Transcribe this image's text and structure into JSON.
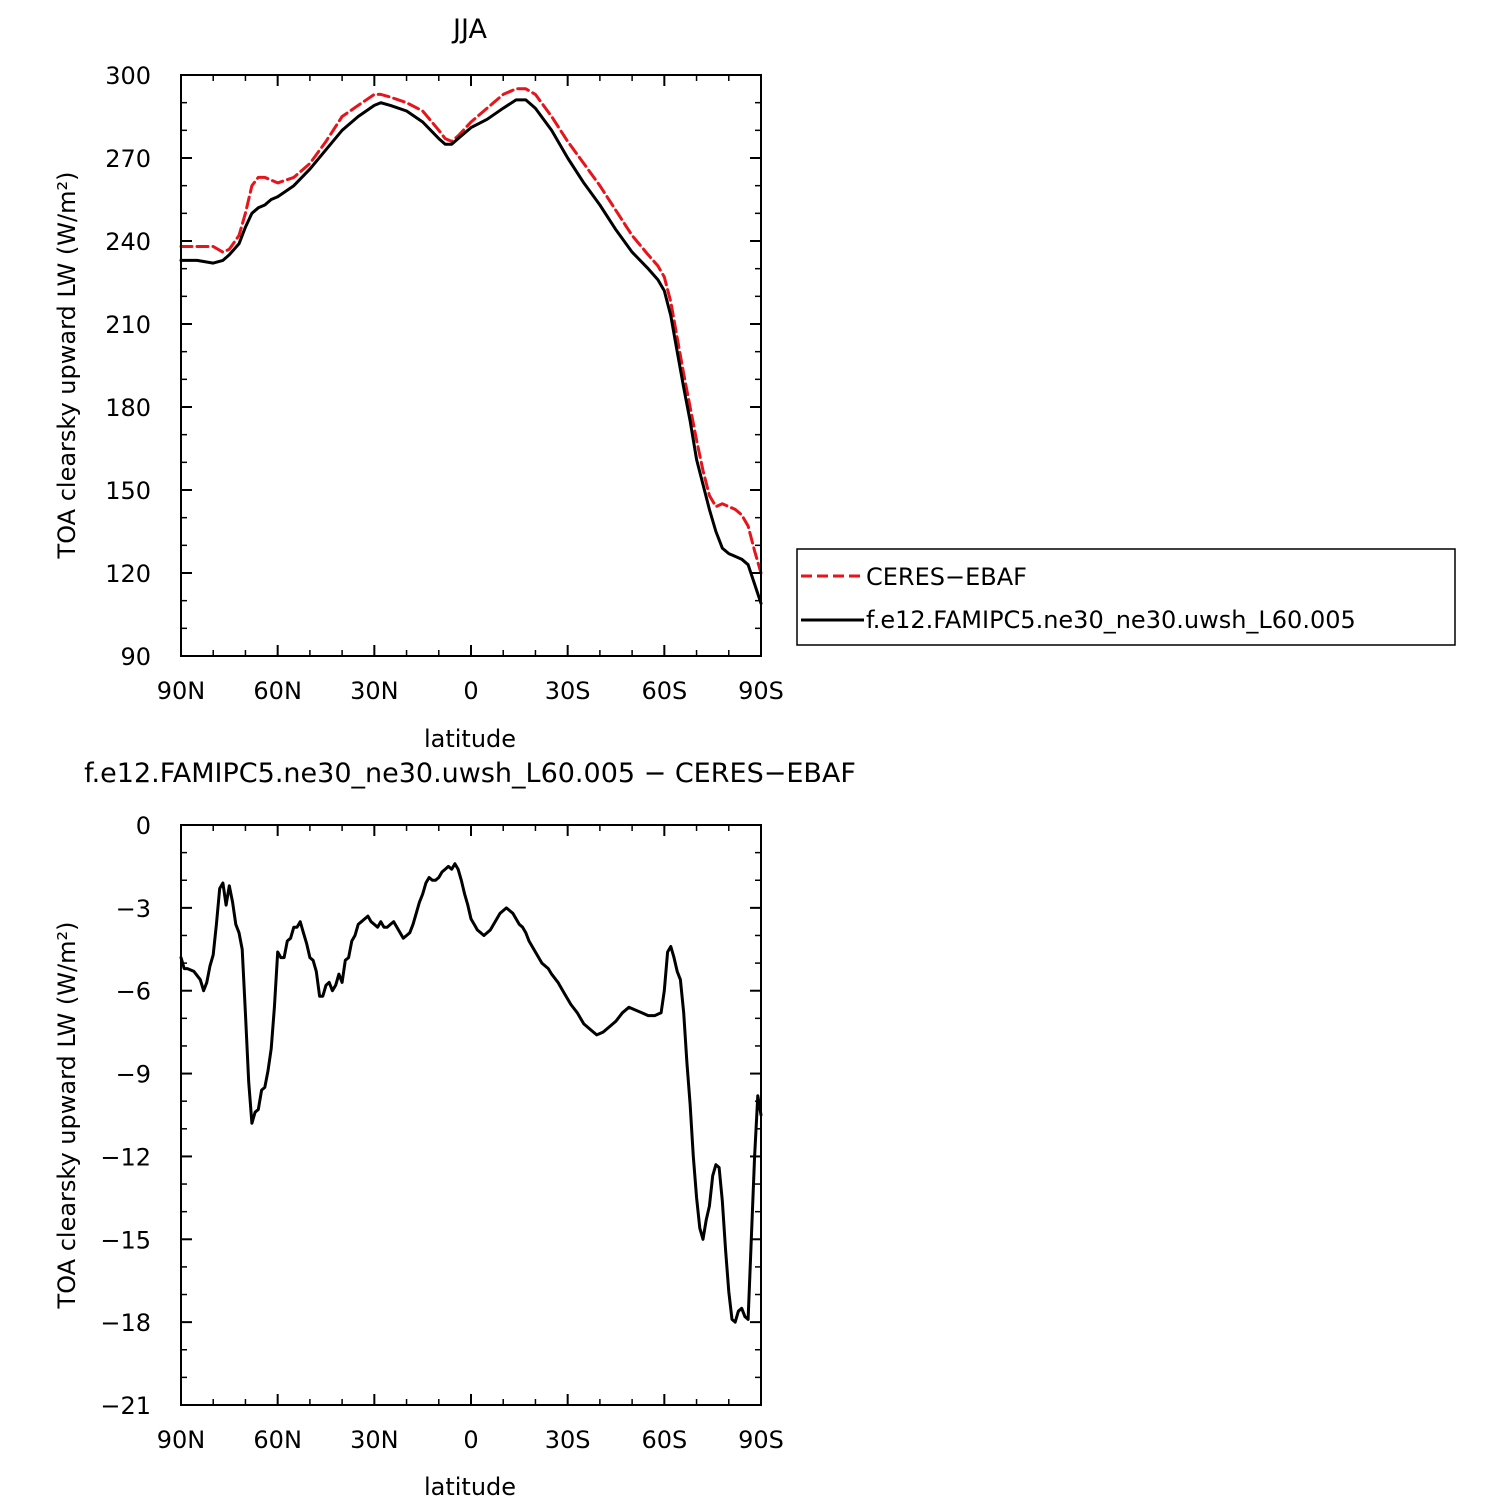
{
  "chart_data": [
    {
      "type": "line",
      "title": "JJA",
      "xlabel": "latitude",
      "ylabel": "TOA clearsky upward LW (W/m²)",
      "x_ticks": [
        {
          "value": -90,
          "label": "90N"
        },
        {
          "value": -60,
          "label": "60N"
        },
        {
          "value": -30,
          "label": "30N"
        },
        {
          "value": 0,
          "label": "0"
        },
        {
          "value": 30,
          "label": "30S"
        },
        {
          "value": 60,
          "label": "60S"
        },
        {
          "value": 90,
          "label": "90S"
        }
      ],
      "xlim": [
        -90,
        90
      ],
      "ylim": [
        90,
        300
      ],
      "y_ticks": [
        90,
        120,
        150,
        180,
        210,
        240,
        270,
        300
      ],
      "grid": false,
      "legend_position": "right",
      "series": [
        {
          "name": "CERES−EBAF",
          "color": "#e8141a",
          "dash": "dashed",
          "x": [
            -90,
            -85,
            -80,
            -77,
            -75,
            -72,
            -70,
            -68,
            -66,
            -64,
            -62,
            -60,
            -55,
            -50,
            -45,
            -40,
            -35,
            -30,
            -28,
            -25,
            -20,
            -15,
            -10,
            -8,
            -6,
            -4,
            0,
            5,
            10,
            14,
            17,
            20,
            25,
            30,
            35,
            40,
            45,
            50,
            55,
            58,
            60,
            62,
            64,
            66,
            68,
            70,
            72,
            74,
            76,
            78,
            80,
            82,
            84,
            86,
            88,
            90
          ],
          "y": [
            238,
            238,
            238,
            236,
            237,
            242,
            250,
            260,
            263,
            263,
            262,
            261,
            263,
            268,
            276,
            285,
            289,
            293,
            293,
            292,
            290,
            287,
            280,
            277,
            276,
            278,
            283,
            288,
            293,
            295,
            295,
            293,
            285,
            276,
            268,
            260,
            251,
            242,
            235,
            231,
            227,
            218,
            205,
            192,
            180,
            168,
            157,
            148,
            144,
            145,
            144,
            143,
            141,
            137,
            128,
            120
          ]
        },
        {
          "name": "f.e12.FAMIPC5.ne30_ne30.uwsh_L60.005",
          "color": "#000000",
          "dash": "solid",
          "x": [
            -90,
            -85,
            -80,
            -77,
            -75,
            -72,
            -70,
            -68,
            -66,
            -64,
            -62,
            -60,
            -55,
            -50,
            -45,
            -40,
            -35,
            -30,
            -28,
            -25,
            -20,
            -15,
            -10,
            -8,
            -6,
            -4,
            0,
            5,
            10,
            14,
            17,
            20,
            25,
            30,
            35,
            40,
            45,
            50,
            55,
            58,
            60,
            62,
            64,
            66,
            68,
            70,
            72,
            74,
            76,
            78,
            80,
            82,
            84,
            86,
            88,
            90
          ],
          "y": [
            233,
            233,
            232,
            233,
            235,
            239,
            245,
            250,
            252,
            253,
            255,
            256,
            260,
            266,
            273,
            280,
            285,
            289,
            290,
            289,
            287,
            283,
            277,
            275,
            275,
            277,
            281,
            284,
            288,
            291,
            291,
            288,
            280,
            270,
            261,
            253,
            244,
            236,
            230,
            226,
            222,
            213,
            200,
            187,
            175,
            161,
            152,
            143,
            135,
            129,
            127,
            126,
            125,
            123,
            116,
            109
          ]
        }
      ]
    },
    {
      "type": "line",
      "title": "f.e12.FAMIPC5.ne30_ne30.uwsh_L60.005 − CERES−EBAF",
      "xlabel": "latitude",
      "ylabel": "TOA clearsky upward LW (W/m²)",
      "x_ticks": [
        {
          "value": -90,
          "label": "90N"
        },
        {
          "value": -60,
          "label": "60N"
        },
        {
          "value": -30,
          "label": "30N"
        },
        {
          "value": 0,
          "label": "0"
        },
        {
          "value": 30,
          "label": "30S"
        },
        {
          "value": 60,
          "label": "60S"
        },
        {
          "value": 90,
          "label": "90S"
        }
      ],
      "xlim": [
        -90,
        90
      ],
      "ylim": [
        -21,
        0
      ],
      "y_ticks": [
        -21,
        -18,
        -15,
        -12,
        -9,
        -6,
        -3,
        0
      ],
      "grid": false,
      "series": [
        {
          "color": "#000000",
          "dash": "solid",
          "x": [
            -90,
            -89,
            -88,
            -86,
            -84,
            -83,
            -82,
            -81,
            -80,
            -79,
            -78,
            -77,
            -76,
            -75,
            -74,
            -73,
            -72,
            -71,
            -70,
            -69,
            -68,
            -67,
            -66,
            -65,
            -64,
            -63,
            -62,
            -61,
            -60,
            -59,
            -58,
            -57,
            -56,
            -55,
            -54,
            -53,
            -52,
            -51,
            -50,
            -49,
            -48,
            -47,
            -46,
            -45,
            -44,
            -43,
            -42,
            -41,
            -40,
            -39,
            -38,
            -37,
            -36,
            -35,
            -34,
            -33,
            -32,
            -31,
            -30,
            -29,
            -28,
            -27,
            -26,
            -25,
            -24,
            -23,
            -22,
            -21,
            -20,
            -19,
            -18,
            -17,
            -16,
            -15,
            -14,
            -13,
            -12,
            -11,
            -10,
            -9,
            -8,
            -7,
            -6,
            -5,
            -4,
            -3,
            -2,
            -1,
            0,
            1,
            2,
            3,
            4,
            5,
            6,
            7,
            8,
            9,
            10,
            11,
            12,
            13,
            14,
            15,
            16,
            17,
            18,
            19,
            20,
            21,
            22,
            23,
            24,
            25,
            27,
            29,
            31,
            33,
            35,
            37,
            39,
            41,
            43,
            45,
            47,
            49,
            51,
            53,
            55,
            57,
            59,
            60,
            61,
            62,
            63,
            64,
            65,
            66,
            67,
            68,
            69,
            70,
            71,
            72,
            73,
            74,
            75,
            76,
            77,
            78,
            79,
            80,
            81,
            82,
            83,
            84,
            85,
            86,
            87,
            88,
            89,
            90
          ],
          "y": [
            -4.8,
            -5.2,
            -5.2,
            -5.3,
            -5.6,
            -6.0,
            -5.7,
            -5.1,
            -4.7,
            -3.6,
            -2.3,
            -2.1,
            -2.9,
            -2.2,
            -2.8,
            -3.6,
            -3.9,
            -4.5,
            -6.8,
            -9.3,
            -10.8,
            -10.4,
            -10.3,
            -9.6,
            -9.5,
            -8.9,
            -8.1,
            -6.6,
            -4.6,
            -4.8,
            -4.8,
            -4.2,
            -4.1,
            -3.7,
            -3.7,
            -3.5,
            -3.9,
            -4.3,
            -4.8,
            -4.9,
            -5.3,
            -6.2,
            -6.2,
            -5.8,
            -5.7,
            -6.0,
            -5.8,
            -5.4,
            -5.7,
            -4.9,
            -4.8,
            -4.2,
            -4.0,
            -3.6,
            -3.5,
            -3.4,
            -3.3,
            -3.5,
            -3.6,
            -3.7,
            -3.5,
            -3.7,
            -3.7,
            -3.6,
            -3.5,
            -3.7,
            -3.9,
            -4.1,
            -4.0,
            -3.9,
            -3.6,
            -3.2,
            -2.8,
            -2.5,
            -2.1,
            -1.9,
            -2.0,
            -2.0,
            -1.9,
            -1.7,
            -1.6,
            -1.5,
            -1.6,
            -1.4,
            -1.6,
            -2.0,
            -2.5,
            -2.9,
            -3.4,
            -3.6,
            -3.8,
            -3.9,
            -4.0,
            -3.9,
            -3.8,
            -3.6,
            -3.4,
            -3.2,
            -3.1,
            -3.0,
            -3.1,
            -3.2,
            -3.4,
            -3.6,
            -3.7,
            -3.9,
            -4.2,
            -4.4,
            -4.6,
            -4.8,
            -5.0,
            -5.1,
            -5.2,
            -5.4,
            -5.7,
            -6.1,
            -6.5,
            -6.8,
            -7.2,
            -7.4,
            -7.6,
            -7.5,
            -7.3,
            -7.1,
            -6.8,
            -6.6,
            -6.7,
            -6.8,
            -6.9,
            -6.9,
            -6.8,
            -6.0,
            -4.6,
            -4.4,
            -4.8,
            -5.3,
            -5.6,
            -6.8,
            -8.6,
            -10.1,
            -12.0,
            -13.5,
            -14.6,
            -15.0,
            -14.3,
            -13.8,
            -12.7,
            -12.3,
            -12.4,
            -13.6,
            -15.4,
            -16.9,
            -17.9,
            -18.0,
            -17.6,
            -17.5,
            -17.8,
            -17.9,
            -15.0,
            -12.0,
            -9.8,
            -10.5
          ]
        }
      ]
    }
  ]
}
